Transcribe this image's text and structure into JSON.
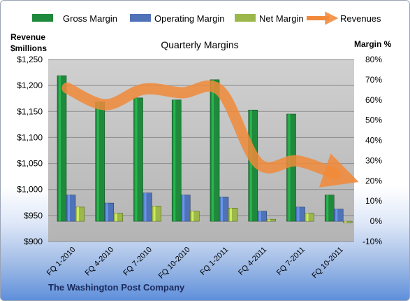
{
  "chart_data": {
    "type": "bar",
    "title": "Quarterly Margins",
    "categories": [
      "FQ 1-2010",
      "FQ 4-2010",
      "FQ 7-2010",
      "FQ 10-2010",
      "FQ 1-2011",
      "FQ 4-2011",
      "FQ 7-2011",
      "FQ 10-2011"
    ],
    "series": [
      {
        "name": "Gross Margin",
        "axis": "right",
        "unit": "%",
        "color": "#1f8a3c",
        "values": [
          72,
          59,
          61,
          60,
          70,
          55,
          53,
          13
        ]
      },
      {
        "name": "Operating Margin",
        "axis": "right",
        "unit": "%",
        "color": "#4f72b8",
        "values": [
          13,
          9,
          14,
          13,
          12,
          5,
          7,
          6
        ]
      },
      {
        "name": "Net Margin",
        "axis": "right",
        "unit": "%",
        "color": "#9cb84a",
        "values": [
          7,
          4,
          7.5,
          5,
          6.5,
          1,
          4,
          -0.5
        ]
      },
      {
        "name": "Revenues",
        "axis": "left",
        "unit": "$ millions",
        "type": "line",
        "color": "#f08a3a",
        "values": [
          1195,
          1163,
          1193,
          1186,
          1190,
          1050,
          1055,
          1030
        ]
      }
    ],
    "left_axis": {
      "label_line1": "Revenue",
      "label_line2": "$millions",
      "range": [
        900,
        1250
      ],
      "ticks": [
        "$900",
        "$950",
        "$1,000",
        "$1,050",
        "$1,100",
        "$1,150",
        "$1,200",
        "$1,250"
      ]
    },
    "right_axis": {
      "label": "Margin %",
      "range": [
        -10,
        80
      ],
      "ticks": [
        "-10%",
        "0%",
        "10%",
        "20%",
        "30%",
        "40%",
        "50%",
        "60%",
        "70%",
        "80%"
      ]
    },
    "legend_position": "top",
    "grid": true,
    "footer": "The Washington Post Company"
  }
}
